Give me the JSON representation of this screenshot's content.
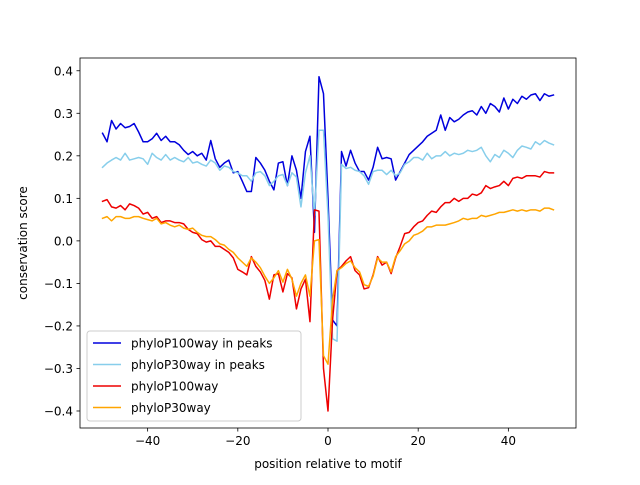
{
  "chart_data": {
    "type": "line",
    "title": "",
    "xlabel": "position relative to motif",
    "ylabel": "conservation score",
    "xlim": [
      -55,
      55
    ],
    "ylim": [
      -0.44,
      0.43
    ],
    "xticks": [
      -40,
      -20,
      0,
      20,
      40
    ],
    "yticks": [
      -0.4,
      -0.3,
      -0.2,
      -0.1,
      0.0,
      0.1,
      0.2,
      0.3,
      0.4
    ],
    "xtick_labels": [
      "−40",
      "−20",
      "0",
      "20",
      "40"
    ],
    "ytick_labels": [
      "−0.4",
      "−0.3",
      "−0.2",
      "−0.1",
      "0.0",
      "0.1",
      "0.2",
      "0.3",
      "0.4"
    ],
    "grid": false,
    "legend_position": "lower-left",
    "x": [
      -50,
      -49,
      -48,
      -47,
      -46,
      -45,
      -44,
      -43,
      -42,
      -41,
      -40,
      -39,
      -38,
      -37,
      -36,
      -35,
      -34,
      -33,
      -32,
      -31,
      -30,
      -29,
      -28,
      -27,
      -26,
      -25,
      -24,
      -23,
      -22,
      -21,
      -20,
      -19,
      -18,
      -17,
      -16,
      -15,
      -14,
      -13,
      -12,
      -11,
      -10,
      -9,
      -8,
      -7,
      -6,
      -5,
      -4,
      -3,
      -2,
      -1,
      0,
      1,
      2,
      3,
      4,
      5,
      6,
      7,
      8,
      9,
      10,
      11,
      12,
      13,
      14,
      15,
      16,
      17,
      18,
      19,
      20,
      21,
      22,
      23,
      24,
      25,
      26,
      27,
      28,
      29,
      30,
      31,
      32,
      33,
      34,
      35,
      36,
      37,
      38,
      39,
      40,
      41,
      42,
      43,
      44,
      45,
      46,
      47,
      48,
      49,
      50
    ],
    "series": [
      {
        "name": "phyloP100way in peaks",
        "color": "#0000dd",
        "values": [
          0.253,
          0.233,
          0.283,
          0.263,
          0.276,
          0.266,
          0.269,
          0.276,
          0.256,
          0.233,
          0.233,
          0.24,
          0.253,
          0.236,
          0.246,
          0.233,
          0.233,
          0.226,
          0.213,
          0.203,
          0.21,
          0.2,
          0.206,
          0.19,
          0.236,
          0.193,
          0.173,
          0.183,
          0.19,
          0.16,
          0.163,
          0.14,
          0.116,
          0.116,
          0.196,
          0.183,
          0.166,
          0.14,
          0.12,
          0.183,
          0.186,
          0.13,
          0.2,
          0.166,
          0.1,
          0.21,
          0.246,
          0.02,
          0.386,
          0.346,
          0.1,
          -0.186,
          -0.2,
          0.21,
          0.176,
          0.213,
          0.183,
          0.163,
          0.163,
          0.143,
          0.173,
          0.22,
          0.193,
          0.196,
          0.193,
          0.143,
          0.163,
          0.183,
          0.203,
          0.213,
          0.223,
          0.233,
          0.246,
          0.253,
          0.26,
          0.296,
          0.26,
          0.29,
          0.28,
          0.286,
          0.296,
          0.303,
          0.306,
          0.296,
          0.316,
          0.3,
          0.323,
          0.316,
          0.303,
          0.336,
          0.31,
          0.333,
          0.323,
          0.34,
          0.333,
          0.343,
          0.346,
          0.33,
          0.346,
          0.34,
          0.343
        ]
      },
      {
        "name": "phyloP30way in peaks",
        "color": "#87ceeb",
        "values": [
          0.173,
          0.183,
          0.19,
          0.196,
          0.19,
          0.206,
          0.19,
          0.193,
          0.196,
          0.193,
          0.18,
          0.206,
          0.196,
          0.19,
          0.203,
          0.19,
          0.196,
          0.19,
          0.186,
          0.196,
          0.183,
          0.186,
          0.18,
          0.176,
          0.19,
          0.183,
          0.166,
          0.176,
          0.173,
          0.163,
          0.16,
          0.153,
          0.153,
          0.14,
          0.16,
          0.163,
          0.153,
          0.13,
          0.14,
          0.153,
          0.156,
          0.13,
          0.16,
          0.15,
          0.08,
          0.16,
          0.2,
          0.06,
          0.26,
          0.26,
          0.06,
          -0.23,
          -0.236,
          0.18,
          0.17,
          0.173,
          0.166,
          0.163,
          0.153,
          0.133,
          0.163,
          0.166,
          0.166,
          0.156,
          0.166,
          0.153,
          0.16,
          0.18,
          0.186,
          0.196,
          0.196,
          0.19,
          0.206,
          0.193,
          0.2,
          0.2,
          0.21,
          0.2,
          0.206,
          0.203,
          0.206,
          0.213,
          0.21,
          0.213,
          0.22,
          0.2,
          0.186,
          0.203,
          0.196,
          0.213,
          0.206,
          0.196,
          0.213,
          0.223,
          0.22,
          0.216,
          0.233,
          0.226,
          0.236,
          0.23,
          0.226
        ]
      },
      {
        "name": "phyloP100way",
        "color": "#ee0000",
        "values": [
          0.093,
          0.097,
          0.08,
          0.077,
          0.083,
          0.073,
          0.087,
          0.083,
          0.077,
          0.063,
          0.067,
          0.053,
          0.057,
          0.043,
          0.047,
          0.047,
          0.043,
          0.043,
          0.04,
          0.027,
          0.02,
          0.017,
          0.003,
          -0.003,
          0.0,
          -0.013,
          -0.013,
          -0.02,
          -0.027,
          -0.04,
          -0.067,
          -0.073,
          -0.08,
          -0.037,
          -0.06,
          -0.073,
          -0.093,
          -0.137,
          -0.08,
          -0.077,
          -0.12,
          -0.077,
          -0.087,
          -0.16,
          -0.113,
          -0.09,
          -0.19,
          0.073,
          0.07,
          -0.3,
          -0.4,
          -0.187,
          -0.07,
          -0.06,
          -0.047,
          -0.037,
          -0.07,
          -0.08,
          -0.113,
          -0.11,
          -0.08,
          -0.037,
          -0.057,
          -0.05,
          -0.077,
          -0.04,
          -0.013,
          0.017,
          0.02,
          0.033,
          0.043,
          0.047,
          0.06,
          0.07,
          0.067,
          0.08,
          0.09,
          0.09,
          0.1,
          0.093,
          0.1,
          0.1,
          0.11,
          0.107,
          0.113,
          0.13,
          0.123,
          0.127,
          0.13,
          0.14,
          0.13,
          0.147,
          0.15,
          0.147,
          0.153,
          0.153,
          0.153,
          0.15,
          0.163,
          0.16,
          0.16
        ]
      },
      {
        "name": "phyloP30way",
        "color": "#ffa500",
        "values": [
          0.053,
          0.057,
          0.047,
          0.057,
          0.057,
          0.053,
          0.053,
          0.057,
          0.057,
          0.053,
          0.05,
          0.047,
          0.053,
          0.04,
          0.043,
          0.037,
          0.033,
          0.037,
          0.03,
          0.027,
          0.03,
          0.02,
          0.013,
          0.01,
          0.01,
          0.003,
          -0.007,
          -0.01,
          -0.02,
          -0.027,
          -0.04,
          -0.05,
          -0.06,
          -0.04,
          -0.05,
          -0.063,
          -0.083,
          -0.1,
          -0.087,
          -0.07,
          -0.097,
          -0.067,
          -0.09,
          -0.13,
          -0.1,
          -0.08,
          -0.13,
          0.0,
          0.003,
          -0.27,
          -0.29,
          -0.14,
          -0.07,
          -0.063,
          -0.053,
          -0.047,
          -0.063,
          -0.073,
          -0.103,
          -0.107,
          -0.083,
          -0.04,
          -0.05,
          -0.05,
          -0.073,
          -0.037,
          -0.023,
          -0.007,
          0.0,
          0.013,
          0.017,
          0.023,
          0.033,
          0.033,
          0.037,
          0.037,
          0.037,
          0.04,
          0.043,
          0.047,
          0.053,
          0.05,
          0.053,
          0.053,
          0.06,
          0.057,
          0.06,
          0.063,
          0.067,
          0.067,
          0.07,
          0.073,
          0.07,
          0.073,
          0.07,
          0.073,
          0.073,
          0.07,
          0.077,
          0.077,
          0.073
        ]
      }
    ]
  }
}
